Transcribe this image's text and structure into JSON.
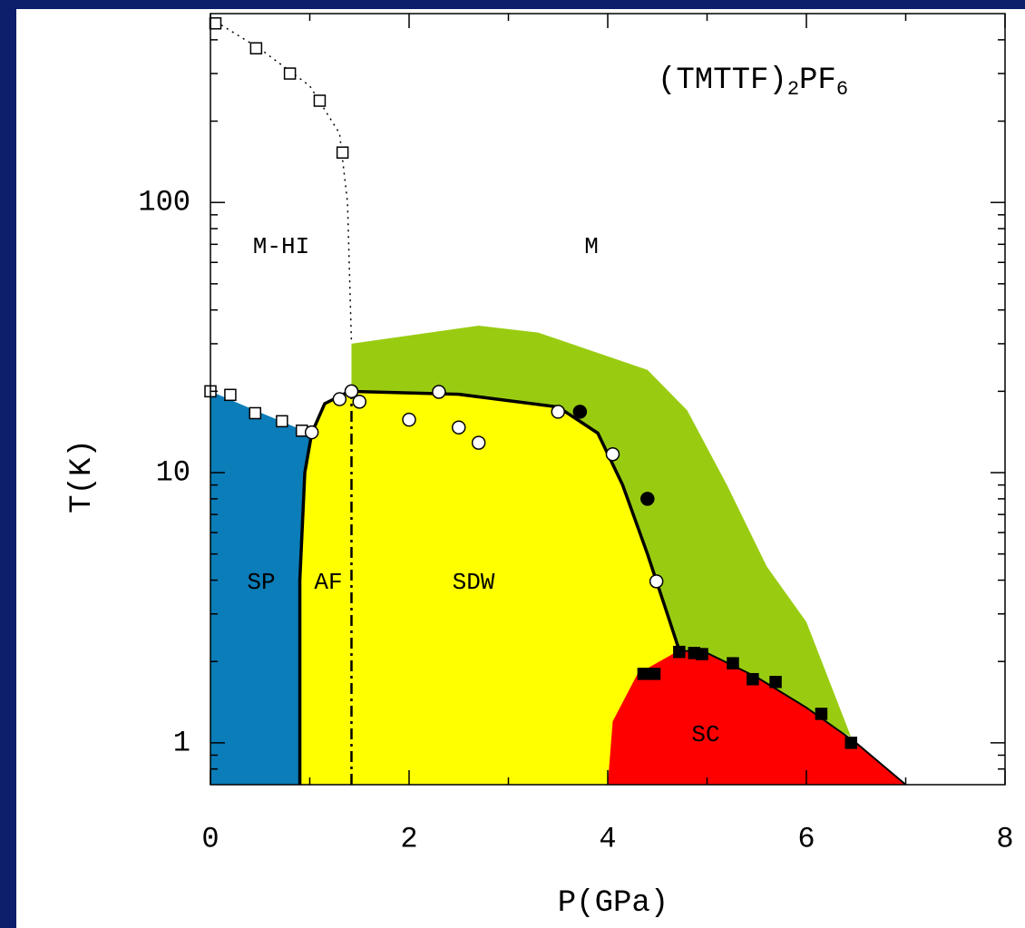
{
  "chart_data": {
    "type": "phase-diagram",
    "title": [
      "(TMTTF)",
      "2",
      "PF",
      "6"
    ],
    "x_label": "P(GPa)",
    "y_label": "T(K)",
    "xlim": [
      0,
      8
    ],
    "xticks": [
      0,
      2,
      4,
      6,
      8
    ],
    "xminor": [
      1,
      3,
      5,
      7
    ],
    "ylim": [
      0.7,
      500
    ],
    "log_y": true,
    "yticks": [
      1,
      10,
      100
    ],
    "yminor": [
      0.8,
      0.9,
      2,
      3,
      4,
      5,
      6,
      7,
      8,
      9,
      20,
      30,
      40,
      50,
      60,
      70,
      80,
      90,
      200,
      300,
      400
    ],
    "regions": [
      {
        "color": "#99cc11",
        "x": [
          1.42,
          1.42,
          2.7,
          3.3,
          4.4,
          4.8,
          5.2,
          5.6,
          6.0,
          6.45,
          4.9,
          4.72,
          4.45,
          4.1,
          3.5,
          1.5
        ],
        "y": [
          20,
          30,
          35,
          33,
          24,
          17,
          9,
          4.5,
          2.8,
          1.05,
          2.15,
          2.2,
          4,
          10,
          17,
          20
        ]
      },
      {
        "color": "#0b7db8",
        "x": [
          0,
          0,
          0.45,
          0.9,
          1.02,
          0.95,
          0.9,
          0.9
        ],
        "y": [
          0.7,
          20,
          17,
          14.5,
          14,
          10,
          4,
          0.7
        ]
      },
      {
        "color": "#ffff00",
        "x": [
          0.9,
          0.9,
          0.95,
          1.02,
          1.15,
          1.4,
          2.5,
          3.5,
          3.9,
          4.15,
          4.4,
          4.6,
          4.72,
          4.75
        ],
        "y": [
          0.7,
          4,
          10,
          14,
          18,
          20,
          19.5,
          17.5,
          14,
          9,
          5,
          3,
          2.2,
          0.7
        ]
      },
      {
        "color": "#ff0000",
        "x": [
          4.0,
          4.05,
          4.3,
          4.72,
          5.0,
          5.5,
          6.0,
          6.5,
          7.0
        ],
        "y": [
          0.7,
          1.2,
          1.8,
          2.2,
          2.15,
          1.75,
          1.35,
          1.0,
          0.7
        ]
      }
    ],
    "lines": [
      {
        "style": "solid",
        "width": 3.5,
        "x": [
          0.9,
          0.9,
          0.95,
          1.02,
          1.15,
          1.4,
          2.5,
          3.5,
          3.9,
          4.15,
          4.4,
          4.6,
          4.72
        ],
        "y": [
          0.7,
          4,
          10,
          14,
          18,
          20,
          19.5,
          17.5,
          14,
          9,
          5,
          3,
          2.2
        ]
      },
      {
        "style": "solid",
        "width": 2,
        "x": [
          4.72,
          5.0,
          5.5,
          6.0,
          6.5,
          7.0
        ],
        "y": [
          2.2,
          2.15,
          1.75,
          1.35,
          1.0,
          0.7
        ]
      },
      {
        "style": "dotted",
        "width": 1.5,
        "x": [
          0,
          0.5,
          1.0,
          1.3,
          1.38,
          1.42
        ],
        "y": [
          480,
          370,
          270,
          180,
          100,
          30
        ]
      },
      {
        "style": "dashdot",
        "width": 2.5,
        "x": [
          1.42,
          1.42
        ],
        "y": [
          0.7,
          20
        ]
      }
    ],
    "series": [
      {
        "marker": "square",
        "filled": false,
        "x": [
          0.05,
          0.46,
          0.8,
          1.1,
          1.33
        ],
        "values": [
          460,
          372,
          300,
          238,
          153
        ]
      },
      {
        "marker": "square",
        "filled": false,
        "x": [
          0.0,
          0.2,
          0.45,
          0.72,
          0.92
        ],
        "values": [
          20,
          19.4,
          16.6,
          15.5,
          14.3
        ]
      },
      {
        "marker": "circle",
        "filled": false,
        "x": [
          1.02,
          1.3,
          1.42,
          1.5,
          2.0,
          2.3,
          2.5,
          2.7,
          3.5,
          4.05,
          4.49
        ],
        "values": [
          14.1,
          18.7,
          20,
          18.3,
          15.7,
          19.9,
          14.7,
          12.9,
          16.8,
          11.7,
          3.96
        ]
      },
      {
        "marker": "circle",
        "filled": true,
        "x": [
          3.72,
          4.4
        ],
        "values": [
          16.8,
          8.0
        ]
      },
      {
        "marker": "square",
        "filled": true,
        "x": [
          4.36,
          4.47,
          4.72,
          4.87,
          4.95,
          5.26,
          5.46,
          5.69,
          6.15,
          6.45
        ],
        "values": [
          1.8,
          1.8,
          2.17,
          2.15,
          2.13,
          1.97,
          1.72,
          1.68,
          1.28,
          1.0
        ]
      }
    ],
    "labels": [
      "M-HI",
      "M",
      "SP",
      "AF",
      "SDW",
      "SC"
    ]
  }
}
